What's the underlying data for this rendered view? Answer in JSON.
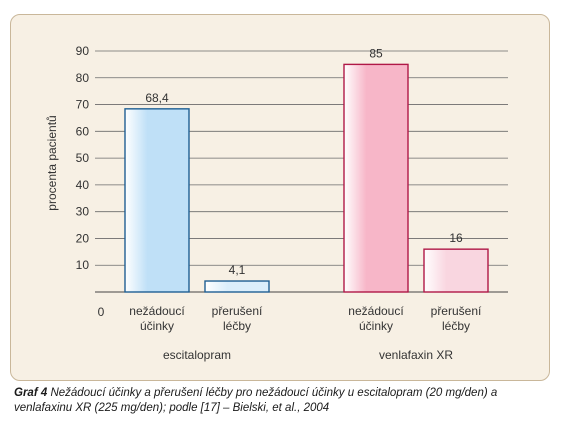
{
  "chart_data": {
    "type": "bar",
    "ylabel": "procenta pacientů",
    "xlabel": "",
    "ylim": [
      0,
      90
    ],
    "yticks": [
      0,
      10,
      20,
      30,
      40,
      50,
      60,
      70,
      80,
      90
    ],
    "yzero_label": "0",
    "grid": true,
    "groups": [
      {
        "name": "escitalopram",
        "bars": [
          {
            "category": [
              "nežádoucí",
              "účinky"
            ],
            "value": 68.4,
            "label": "68,4",
            "color": "#bfe0f7",
            "edge": "#1f5f93"
          },
          {
            "category": [
              "přerušení",
              "léčby"
            ],
            "value": 4.1,
            "label": "4,1",
            "color": "#dbeefb",
            "edge": "#1f5f93"
          }
        ]
      },
      {
        "name": "venlafaxin XR",
        "bars": [
          {
            "category": [
              "nežádoucí",
              "účinky"
            ],
            "value": 85,
            "label": "85",
            "color": "#f7b6c8",
            "edge": "#b01847"
          },
          {
            "category": [
              "přerušení",
              "léčby"
            ],
            "value": 16,
            "label": "16",
            "color": "#f9d6e0",
            "edge": "#b01847"
          }
        ]
      }
    ]
  },
  "caption": {
    "label": "Graf 4",
    "text": "Nežádoucí účinky a přerušení léčby pro nežádoucí účinky u escitalopram (20 mg/den) a venlafaxinu XR (225 mg/den); podle [17] – Bielski, et al., 2004"
  }
}
